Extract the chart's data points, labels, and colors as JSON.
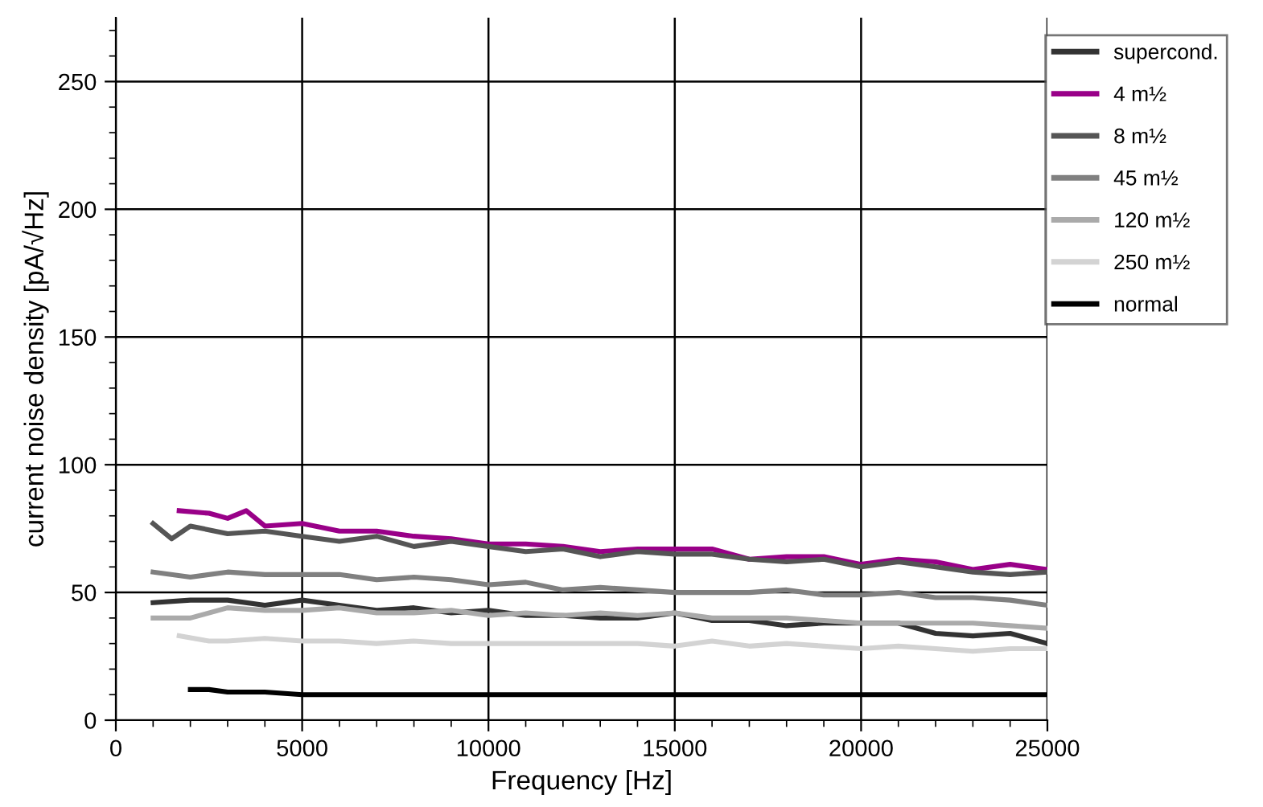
{
  "chart_data": {
    "type": "line",
    "xlabel": "Frequency [Hz]",
    "ylabel": "current noise density [pA/√Hz]",
    "xlim": [
      0,
      25000
    ],
    "xticks": [
      0,
      5000,
      10000,
      15000,
      20000,
      25000
    ],
    "ylim": [
      0,
      275
    ],
    "yticks": [
      0,
      50,
      100,
      150,
      200,
      250
    ],
    "grid": true,
    "legend": "right",
    "line_style": "solid",
    "marker": "none",
    "series": [
      {
        "name": "supercond.",
        "color": "#333333",
        "x": [
          1000,
          2000,
          3000,
          4000,
          5000,
          6000,
          7000,
          8000,
          9000,
          10000,
          11000,
          12000,
          13000,
          14000,
          15000,
          16000,
          17000,
          18000,
          19000,
          20000,
          21000,
          22000,
          23000,
          24000,
          25000
        ],
        "values": [
          46,
          47,
          47,
          45,
          47,
          45,
          43,
          44,
          42,
          43,
          41,
          41,
          40,
          40,
          42,
          39,
          39,
          37,
          38,
          38,
          38,
          34,
          33,
          34,
          30
        ]
      },
      {
        "name": "4 m½",
        "color": "#990088",
        "x": [
          1700,
          2500,
          3000,
          3500,
          4000,
          5000,
          6000,
          7000,
          8000,
          9000,
          10000,
          11000,
          12000,
          13000,
          14000,
          15000,
          16000,
          17000,
          18000,
          19000,
          20000,
          21000,
          22000,
          23000,
          24000,
          25000
        ],
        "values": [
          82,
          81,
          79,
          82,
          76,
          77,
          74,
          74,
          72,
          71,
          69,
          69,
          68,
          66,
          67,
          67,
          67,
          63,
          64,
          64,
          61,
          63,
          62,
          59,
          61,
          59
        ]
      },
      {
        "name": "8 m½",
        "color": "#555555",
        "x": [
          1000,
          1500,
          2000,
          3000,
          4000,
          5000,
          6000,
          7000,
          8000,
          9000,
          10000,
          11000,
          12000,
          13000,
          14000,
          15000,
          16000,
          17000,
          18000,
          19000,
          20000,
          21000,
          22000,
          23000,
          24000,
          25000
        ],
        "values": [
          77,
          71,
          76,
          73,
          74,
          72,
          70,
          72,
          68,
          70,
          68,
          66,
          67,
          64,
          66,
          65,
          65,
          63,
          62,
          63,
          60,
          62,
          60,
          58,
          57,
          58
        ]
      },
      {
        "name": "45 m½",
        "color": "#808080",
        "x": [
          1000,
          2000,
          3000,
          4000,
          5000,
          6000,
          7000,
          8000,
          9000,
          10000,
          11000,
          12000,
          13000,
          14000,
          15000,
          16000,
          17000,
          18000,
          19000,
          20000,
          21000,
          22000,
          23000,
          24000,
          25000
        ],
        "values": [
          58,
          56,
          58,
          57,
          57,
          57,
          55,
          56,
          55,
          53,
          54,
          51,
          52,
          51,
          50,
          50,
          50,
          51,
          49,
          49,
          50,
          48,
          48,
          47,
          45
        ]
      },
      {
        "name": "120 m½",
        "color": "#aaaaaa",
        "x": [
          1000,
          2000,
          3000,
          4000,
          5000,
          6000,
          7000,
          8000,
          9000,
          10000,
          11000,
          12000,
          13000,
          14000,
          15000,
          16000,
          17000,
          18000,
          19000,
          20000,
          21000,
          22000,
          23000,
          24000,
          25000
        ],
        "values": [
          40,
          40,
          44,
          43,
          43,
          44,
          42,
          42,
          43,
          41,
          42,
          41,
          42,
          41,
          42,
          40,
          40,
          40,
          39,
          38,
          38,
          38,
          38,
          37,
          36
        ]
      },
      {
        "name": "250 m½",
        "color": "#d3d3d3",
        "x": [
          1700,
          2500,
          3000,
          4000,
          5000,
          6000,
          7000,
          8000,
          9000,
          10000,
          11000,
          12000,
          13000,
          14000,
          15000,
          16000,
          17000,
          18000,
          19000,
          20000,
          21000,
          22000,
          23000,
          24000,
          25000
        ],
        "values": [
          33,
          31,
          31,
          32,
          31,
          31,
          30,
          31,
          30,
          30,
          30,
          30,
          30,
          30,
          29,
          31,
          29,
          30,
          29,
          28,
          29,
          28,
          27,
          28,
          28
        ]
      },
      {
        "name": "normal",
        "color": "#000000",
        "x": [
          2000,
          2500,
          3000,
          4000,
          5000,
          6000,
          7000,
          8000,
          9000,
          10000,
          11000,
          12000,
          13000,
          14000,
          15000,
          16000,
          17000,
          18000,
          19000,
          20000,
          21000,
          22000,
          23000,
          24000,
          25000
        ],
        "values": [
          12,
          12,
          11,
          11,
          10,
          10,
          10,
          10,
          10,
          10,
          10,
          10,
          10,
          10,
          10,
          10,
          10,
          10,
          10,
          10,
          10,
          10,
          10,
          10,
          10
        ]
      }
    ]
  }
}
